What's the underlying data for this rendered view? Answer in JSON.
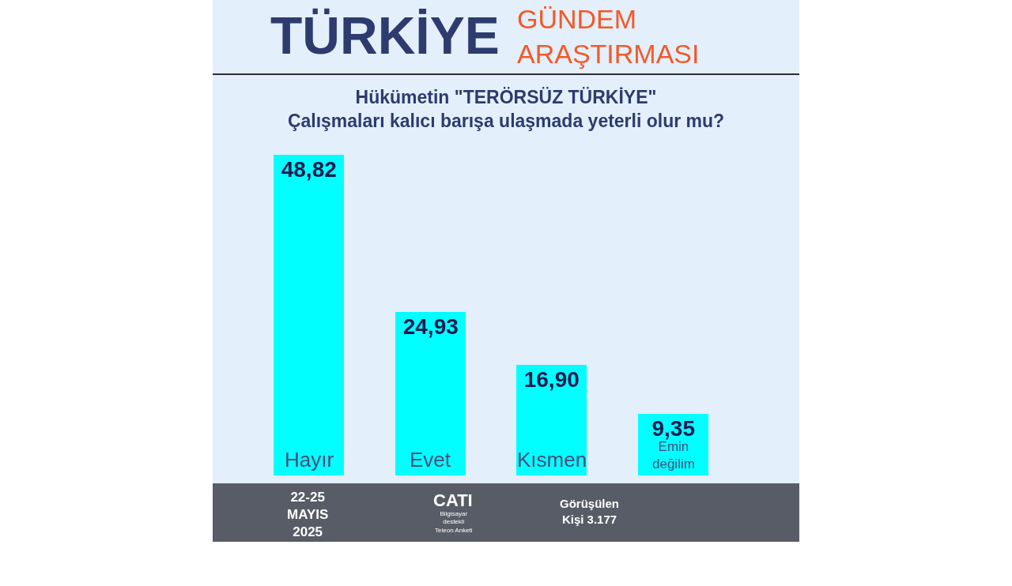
{
  "chart_data": {
    "type": "bar",
    "title": "Hükümetin \"TERÖRSÜZ TÜRKİYE\"\nÇalışmaları kalıcı barışa ulaşmada yeterli olur mu?",
    "categories": [
      "Hayır",
      "Evet",
      "Kısmen",
      "Emin değilim"
    ],
    "values": [
      48.82,
      24.93,
      16.9,
      9.35
    ],
    "color": "#00ffff",
    "value_labels": [
      "48,82",
      "24,93",
      "16,90",
      "9,35"
    ],
    "annotations": [
      "TÜRKİYE",
      "GÜNDEM\nARAŞTIRMASI",
      "22-25\nMAYIS\n2025",
      "CATI",
      "Bilgisayar\ndestekli\nTeleon Anketi",
      "Görüşülen\nKişi 3.177"
    ]
  }
}
